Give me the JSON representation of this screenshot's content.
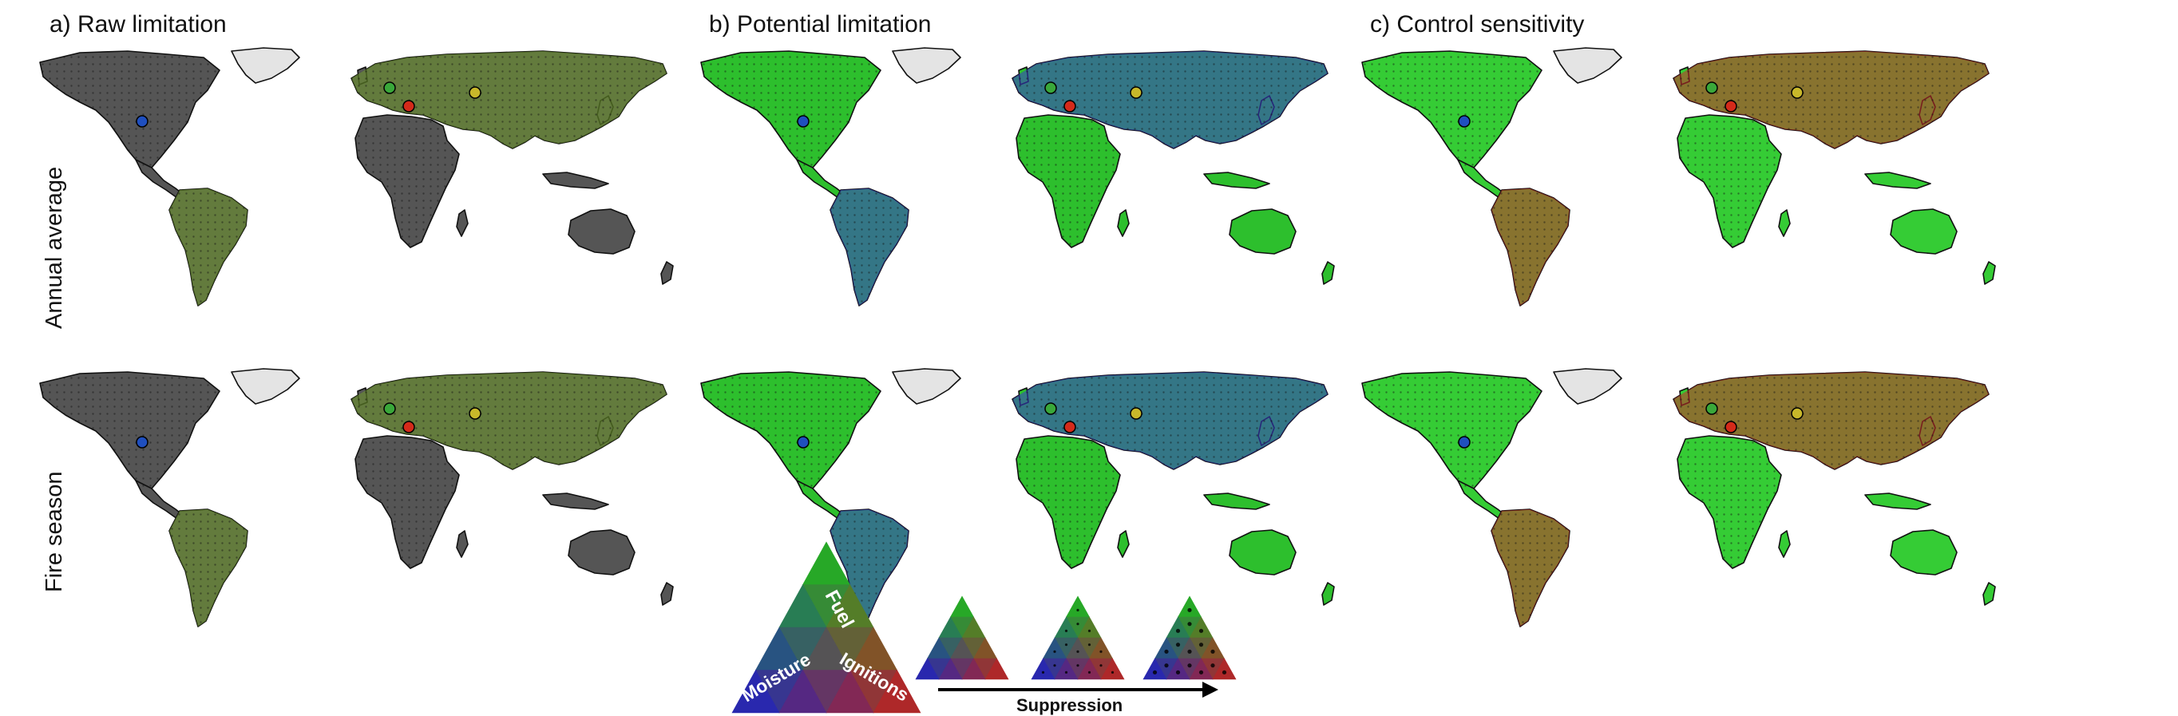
{
  "panels": [
    {
      "id": "a",
      "title": "a) Raw limitation"
    },
    {
      "id": "b",
      "title": "b) Potential limitation"
    },
    {
      "id": "c",
      "title": "c) Control sensitivity"
    }
  ],
  "rows": [
    {
      "id": "annual",
      "label": "Annual average"
    },
    {
      "id": "fire",
      "label": "Fire season"
    }
  ],
  "legend": {
    "vertex_labels": {
      "top": "Fuel",
      "left": "Moisture",
      "right": "Ignitions"
    },
    "arrow_label": "Suppression"
  },
  "colors": {
    "fuel": "#18c418",
    "moisture": "#1a1acc",
    "ignitions": "#cc1a1a",
    "raw_gray": "#555555",
    "greenland": "#e4e4e4",
    "marker_blue": "#1f4fbf",
    "marker_red": "#d42a1a",
    "marker_green": "#3aa83a",
    "marker_yellow": "#c8b82a"
  },
  "styles": {
    "a": {
      "base": "#555555",
      "tint": "#6f9a2a"
    },
    "b": {
      "base": "#2dbf2d",
      "tint": "#3a3ad0"
    },
    "c": {
      "base": "#35cc35",
      "tint": "#cc2a2a"
    }
  }
}
